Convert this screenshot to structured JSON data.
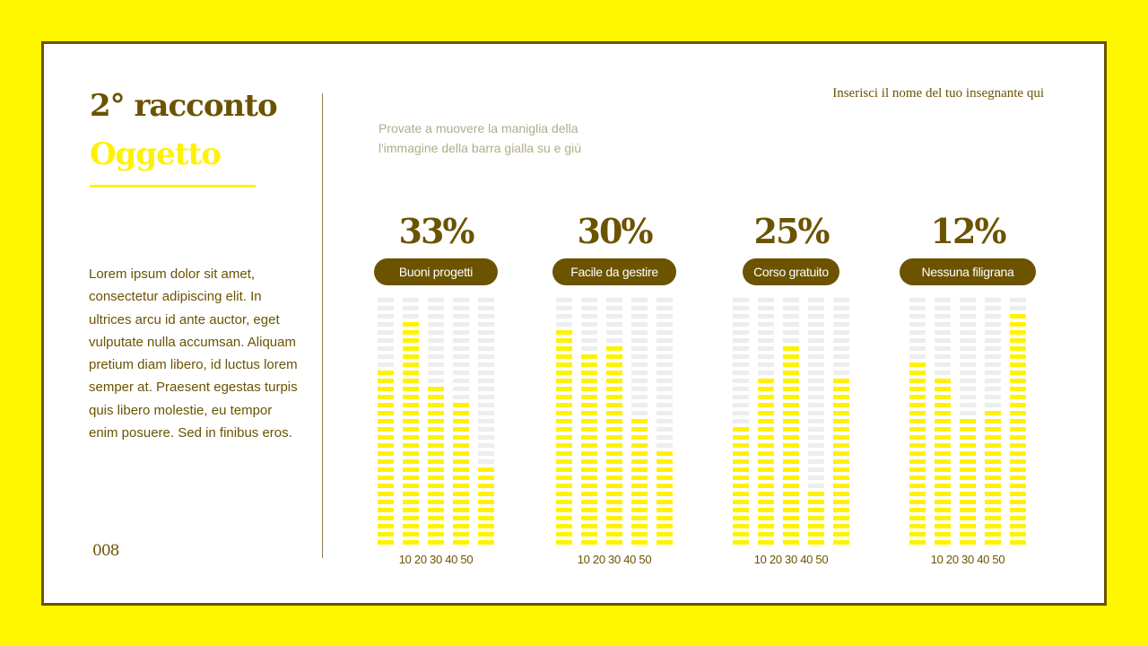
{
  "header": {
    "title_line1": "2° racconto",
    "title_line2": "Oggetto",
    "teacher_name": "Inserisci il nome del tuo insegnante qui",
    "hint": "Provate a muovere la maniglia della l'immagine della barra gialla su e giù"
  },
  "body": {
    "paragraph": "Lorem ipsum dolor sit amet, consectetur adipiscing elit. In ultrices arcu id ante auctor, eget vulputate nulla accumsan. Aliquam pretium diam libero, id luctus lorem semper at. Praesent egestas turpis quis libero molestie, eu tempor enim posuere. Sed in finibus eros."
  },
  "footer": {
    "page_number": "008"
  },
  "colors": {
    "background": "#fff700",
    "accent_dark": "#6b5300",
    "bar_on": "#fff200",
    "bar_off": "#ededf0"
  },
  "chart_data": {
    "type": "bar",
    "title": "",
    "segments_per_bar": 31,
    "axis_labels": [
      "10",
      "20",
      "30",
      "40",
      "50"
    ],
    "axis_label_text": "10 20 30 40 50",
    "groups": [
      {
        "percent": "33%",
        "label": "Buoni progetti",
        "values": [
          22,
          28,
          20,
          18,
          10
        ]
      },
      {
        "percent": "30%",
        "label": "Facile da gestire",
        "values": [
          27,
          24,
          25,
          16,
          12
        ]
      },
      {
        "percent": "25%",
        "label": "Corso gratuito",
        "values": [
          15,
          21,
          25,
          7,
          21
        ]
      },
      {
        "percent": "12%",
        "label": "Nessuna filigrana",
        "values": [
          23,
          21,
          16,
          17,
          29
        ]
      }
    ]
  }
}
